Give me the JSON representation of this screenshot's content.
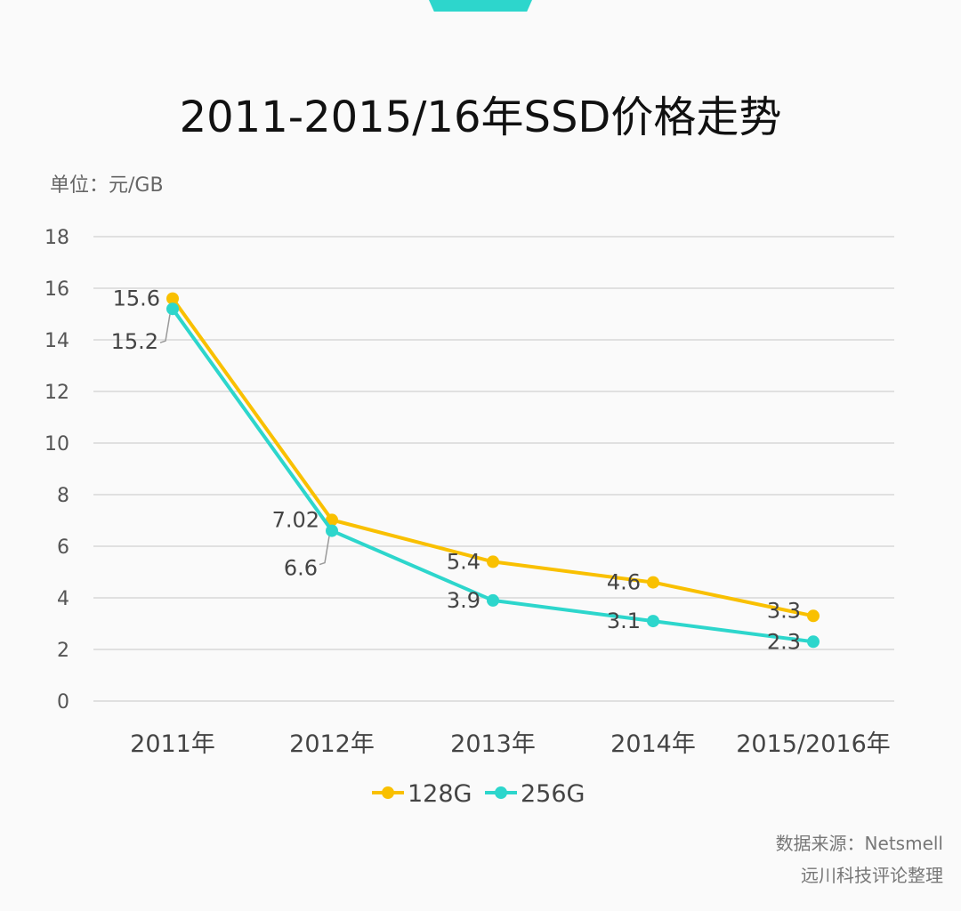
{
  "header": {
    "title": "2011-2015/16年SSD价格走势",
    "unit": "单位：元/GB"
  },
  "footer": {
    "source": "数据来源：Netsmell",
    "credit": "远川科技评论整理"
  },
  "colors": {
    "128G": "#f9c000",
    "256G": "#2dd6cc",
    "accent": "#2dd6cc"
  },
  "chart_data": {
    "type": "line",
    "title": "2011-2015/16年SSD价格走势",
    "ylabel": "单位：元/GB",
    "categories": [
      "2011年",
      "2012年",
      "2013年",
      "2014年",
      "2015/2016年"
    ],
    "yticks": [
      0,
      2,
      4,
      6,
      8,
      10,
      12,
      14,
      16,
      18
    ],
    "ylim": [
      0,
      18
    ],
    "grid": true,
    "legend": "bottom",
    "series": [
      {
        "name": "128G",
        "values": [
          15.6,
          7.02,
          5.4,
          4.6,
          3.3
        ],
        "labels": [
          "15.6",
          "7.02",
          "5.4",
          "4.6",
          "3.3"
        ]
      },
      {
        "name": "256G",
        "values": [
          15.2,
          6.6,
          3.9,
          3.1,
          2.3
        ],
        "labels": [
          "15.2",
          "6.6",
          "3.9",
          "3.1",
          "2.3"
        ]
      }
    ]
  }
}
